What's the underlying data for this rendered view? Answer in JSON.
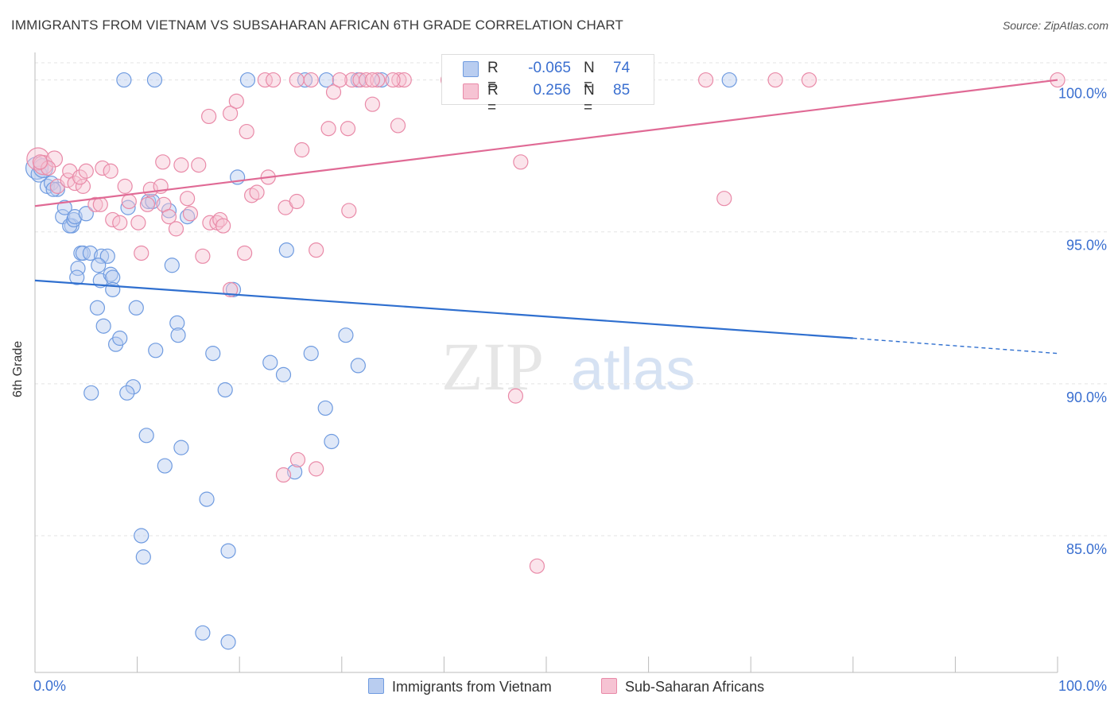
{
  "title": "IMMIGRANTS FROM VIETNAM VS SUBSAHARAN AFRICAN 6TH GRADE CORRELATION CHART",
  "source": "Source: ZipAtlas.com",
  "watermark": {
    "zip": "ZIP",
    "atlas": "atlas"
  },
  "legend": {
    "rows": [
      {
        "r_label": "R =",
        "r_value": "-0.065",
        "n_label": "N =",
        "n_value": "74"
      },
      {
        "r_label": "R =",
        "r_value": "0.256",
        "n_label": "N =",
        "n_value": "85"
      }
    ]
  },
  "bottom_legend": [
    "Immigrants from Vietnam",
    "Sub-Saharan Africans"
  ],
  "colors": {
    "blue": "#6f9be0",
    "blue_fill": "#b9cdf0",
    "blue_line": "#2f6fcf",
    "pink": "#e98aa8",
    "pink_fill": "#f6c3d3",
    "pink_line": "#e06a95",
    "axis_text": "#3a6fd0"
  },
  "chart_data": {
    "type": "scatter",
    "xlabel": "",
    "ylabel": "6th Grade",
    "xlim": [
      0,
      100
    ],
    "ylim": [
      80.5,
      100.8
    ],
    "x_tick_labels": [
      "0.0%",
      "100.0%"
    ],
    "y_ticks": [
      85,
      90,
      95,
      100
    ],
    "y_tick_labels": [
      "85.0%",
      "90.0%",
      "95.0%",
      "100.0%"
    ],
    "grid": true,
    "series": [
      {
        "name": "Immigrants from Vietnam",
        "color": "blue",
        "trend": {
          "x": [
            0,
            80
          ],
          "y": [
            93.4,
            91.5
          ],
          "dashed_to": [
            100,
            91.0
          ]
        },
        "points": [
          [
            0.2,
            97.1,
            14
          ],
          [
            0.4,
            96.9,
            10
          ],
          [
            0.8,
            97.1,
            12
          ],
          [
            1.2,
            96.5,
            9
          ],
          [
            1.6,
            96.6,
            9
          ],
          [
            2.2,
            96.4,
            9
          ],
          [
            1.8,
            96.4,
            9
          ],
          [
            2.7,
            95.5,
            9
          ],
          [
            2.9,
            95.8,
            9
          ],
          [
            3.6,
            95.2,
            9
          ],
          [
            3.4,
            95.2,
            9
          ],
          [
            3.8,
            95.4,
            9
          ],
          [
            3.9,
            95.5,
            9
          ],
          [
            4.5,
            94.3,
            9
          ],
          [
            5.0,
            95.6,
            9
          ],
          [
            4.7,
            94.3,
            9
          ],
          [
            5.4,
            94.3,
            9
          ],
          [
            4.2,
            93.8,
            9
          ],
          [
            4.1,
            93.5,
            9
          ],
          [
            6.5,
            94.2,
            9
          ],
          [
            7.1,
            94.2,
            9
          ],
          [
            6.4,
            93.4,
            9
          ],
          [
            6.2,
            93.9,
            9
          ],
          [
            7.4,
            93.6,
            9
          ],
          [
            7.6,
            93.5,
            9
          ],
          [
            7.6,
            93.1,
            9
          ],
          [
            6.1,
            92.5,
            9
          ],
          [
            6.7,
            91.9,
            9
          ],
          [
            7.9,
            91.3,
            9
          ],
          [
            8.3,
            91.5,
            9
          ],
          [
            9.9,
            92.5,
            9
          ],
          [
            11.1,
            96.0,
            9
          ],
          [
            9.1,
            95.8,
            9
          ],
          [
            13.1,
            95.7,
            9
          ],
          [
            14.9,
            95.5,
            9
          ],
          [
            11.5,
            96.0,
            9
          ],
          [
            13.4,
            93.9,
            9
          ],
          [
            13.9,
            92.0,
            9
          ],
          [
            14.0,
            91.6,
            9
          ],
          [
            11.8,
            91.1,
            9
          ],
          [
            17.4,
            91.0,
            9
          ],
          [
            19.4,
            93.1,
            9
          ],
          [
            18.6,
            89.8,
            9
          ],
          [
            9.6,
            89.9,
            9
          ],
          [
            9.0,
            89.7,
            9
          ],
          [
            5.5,
            89.7,
            9
          ],
          [
            10.9,
            88.3,
            9
          ],
          [
            14.3,
            87.9,
            9
          ],
          [
            12.7,
            87.3,
            9
          ],
          [
            16.8,
            86.2,
            9
          ],
          [
            10.4,
            85.0,
            9
          ],
          [
            10.6,
            84.3,
            9
          ],
          [
            18.9,
            84.5,
            9
          ],
          [
            16.4,
            81.8,
            9
          ],
          [
            18.9,
            81.5,
            9
          ],
          [
            19.8,
            96.8,
            9
          ],
          [
            23.0,
            90.7,
            9
          ],
          [
            24.3,
            90.3,
            9
          ],
          [
            24.6,
            94.4,
            9
          ],
          [
            27.0,
            91.0,
            9
          ],
          [
            28.4,
            89.2,
            9
          ],
          [
            29.0,
            88.1,
            9
          ],
          [
            25.4,
            87.1,
            9
          ],
          [
            30.4,
            91.6,
            9
          ],
          [
            31.6,
            90.6,
            9
          ],
          [
            8.7,
            100.0,
            9
          ],
          [
            11.7,
            100.0,
            9
          ],
          [
            20.8,
            100.0,
            9
          ],
          [
            26.4,
            100.0,
            9
          ],
          [
            28.5,
            100.0,
            9
          ],
          [
            31.6,
            100.0,
            9
          ],
          [
            33.9,
            100.0,
            9
          ],
          [
            42.0,
            100.0,
            9
          ],
          [
            67.9,
            100.0,
            9
          ]
        ]
      },
      {
        "name": "Sub-Saharan Africans",
        "color": "pink",
        "trend": {
          "x": [
            0,
            100
          ],
          "y": [
            95.85,
            100.0
          ]
        },
        "points": [
          [
            0.3,
            97.4,
            14
          ],
          [
            0.8,
            97.2,
            12
          ],
          [
            1.9,
            97.4,
            10
          ],
          [
            1.3,
            97.1,
            9
          ],
          [
            2.2,
            96.5,
            9
          ],
          [
            3.2,
            96.7,
            9
          ],
          [
            3.4,
            97.0,
            9
          ],
          [
            3.9,
            96.6,
            9
          ],
          [
            4.7,
            96.5,
            9
          ],
          [
            4.4,
            96.8,
            9
          ],
          [
            5.0,
            97.0,
            9
          ],
          [
            6.6,
            97.1,
            9
          ],
          [
            7.4,
            97.0,
            9
          ],
          [
            5.9,
            95.9,
            9
          ],
          [
            6.4,
            95.9,
            9
          ],
          [
            7.6,
            95.4,
            9
          ],
          [
            8.3,
            95.3,
            9
          ],
          [
            8.8,
            96.5,
            9
          ],
          [
            9.2,
            96.0,
            9
          ],
          [
            10.1,
            95.3,
            9
          ],
          [
            10.4,
            94.3,
            9
          ],
          [
            11.0,
            95.9,
            9
          ],
          [
            11.3,
            96.4,
            9
          ],
          [
            12.3,
            96.5,
            9
          ],
          [
            12.5,
            97.3,
            9
          ],
          [
            12.6,
            95.9,
            9
          ],
          [
            13.1,
            95.5,
            9
          ],
          [
            14.3,
            97.2,
            9
          ],
          [
            14.9,
            96.1,
            9
          ],
          [
            15.2,
            95.6,
            9
          ],
          [
            16.0,
            97.2,
            9
          ],
          [
            13.8,
            95.1,
            9
          ],
          [
            16.4,
            94.2,
            9
          ],
          [
            17.1,
            95.3,
            9
          ],
          [
            17.8,
            95.3,
            9
          ],
          [
            18.1,
            95.4,
            9
          ],
          [
            18.4,
            95.2,
            9
          ],
          [
            19.1,
            93.1,
            9
          ],
          [
            20.5,
            94.3,
            9
          ],
          [
            21.2,
            96.2,
            9
          ],
          [
            21.7,
            96.3,
            9
          ],
          [
            22.8,
            96.8,
            9
          ],
          [
            24.5,
            95.8,
            9
          ],
          [
            25.6,
            96.0,
            9
          ],
          [
            26.1,
            97.7,
            9
          ],
          [
            27.5,
            94.4,
            9
          ],
          [
            30.7,
            95.7,
            9
          ],
          [
            24.3,
            87.0,
            9
          ],
          [
            25.7,
            87.5,
            9
          ],
          [
            27.5,
            87.2,
            9
          ],
          [
            47.5,
            97.3,
            9
          ],
          [
            47.3,
            100.0,
            9
          ],
          [
            17.0,
            98.8,
            9
          ],
          [
            19.1,
            98.9,
            9
          ],
          [
            20.7,
            98.3,
            9
          ],
          [
            22.5,
            100.0,
            9
          ],
          [
            23.3,
            100.0,
            9
          ],
          [
            25.6,
            100.0,
            9
          ],
          [
            27.0,
            100.0,
            9
          ],
          [
            28.7,
            98.4,
            9
          ],
          [
            29.2,
            99.6,
            9
          ],
          [
            31.0,
            100.0,
            9
          ],
          [
            31.8,
            100.0,
            9
          ],
          [
            32.4,
            100.0,
            9
          ],
          [
            33.0,
            99.2,
            9
          ],
          [
            33.5,
            100.0,
            9
          ],
          [
            35.6,
            100.0,
            9
          ],
          [
            36.1,
            100.0,
            9
          ],
          [
            30.6,
            98.4,
            9
          ],
          [
            35.5,
            98.5,
            9
          ],
          [
            19.7,
            99.3,
            9
          ],
          [
            33.0,
            100.0,
            9
          ],
          [
            40.4,
            100.0,
            9
          ],
          [
            54.0,
            100.0,
            9
          ],
          [
            56.5,
            100.0,
            9
          ],
          [
            65.6,
            100.0,
            9
          ],
          [
            72.4,
            100.0,
            9
          ],
          [
            75.7,
            100.0,
            9
          ],
          [
            67.4,
            96.1,
            9
          ],
          [
            47.0,
            89.6,
            9
          ],
          [
            49.1,
            84.0,
            9
          ],
          [
            100.0,
            100.0,
            9
          ],
          [
            35.0,
            100.0,
            9
          ],
          [
            29.8,
            100.0,
            9
          ],
          [
            0.5,
            97.3,
            9
          ]
        ]
      }
    ]
  }
}
